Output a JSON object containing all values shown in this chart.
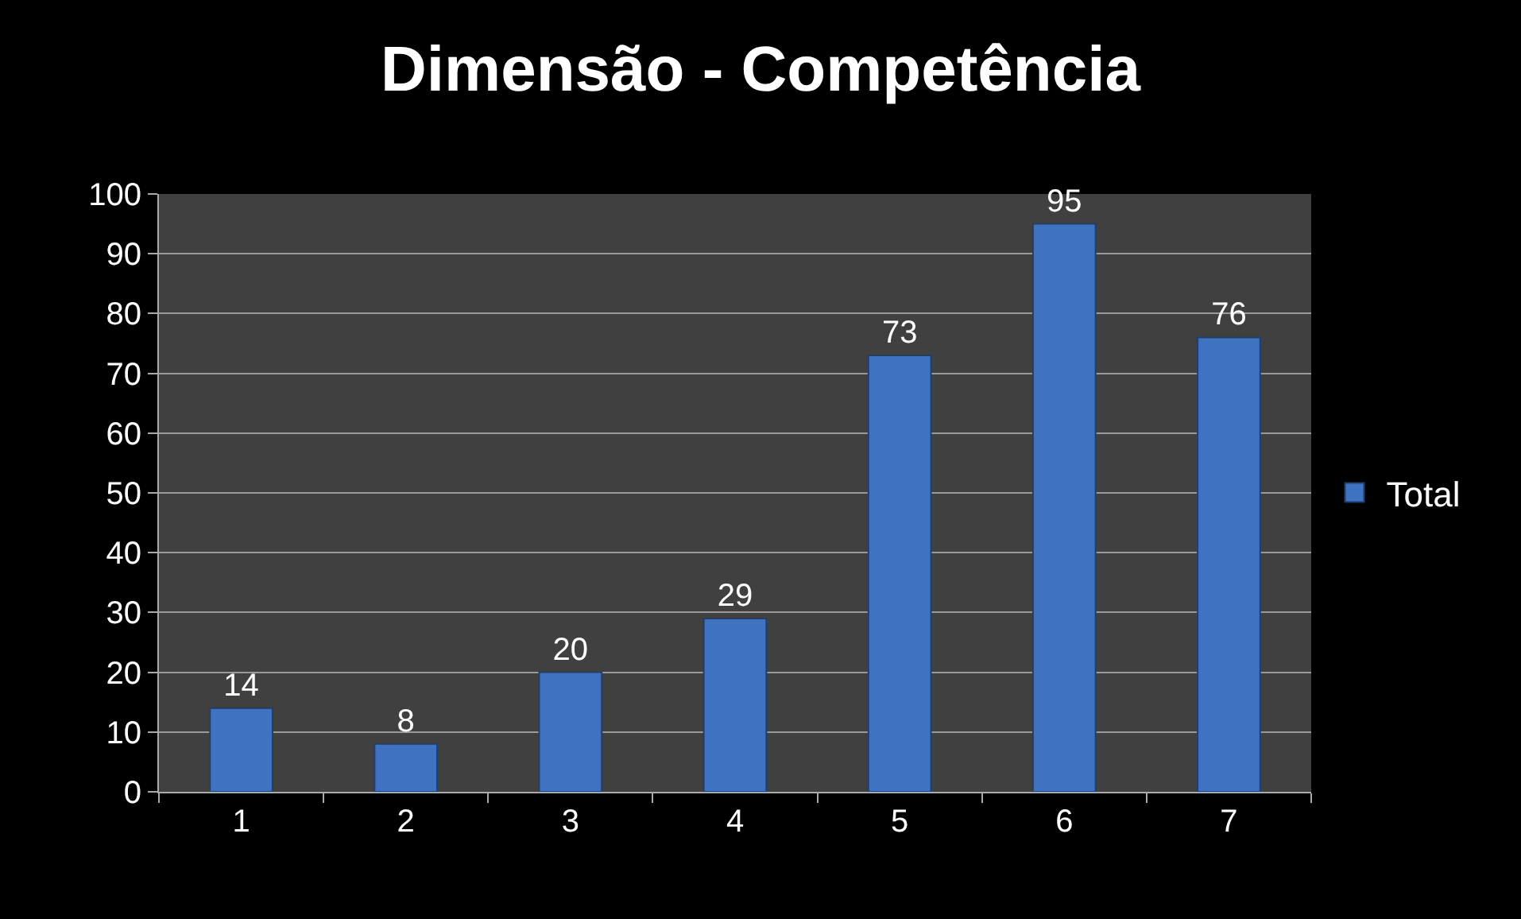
{
  "chart_data": {
    "type": "bar",
    "title": "Dimensão - Competência",
    "categories": [
      "1",
      "2",
      "3",
      "4",
      "5",
      "6",
      "7"
    ],
    "series": [
      {
        "name": "Total",
        "color": "#3f72c0",
        "values": [
          14,
          8,
          20,
          29,
          73,
          95,
          76
        ]
      }
    ],
    "ylim": [
      0,
      100
    ],
    "yticks": [
      0,
      10,
      20,
      30,
      40,
      50,
      60,
      70,
      80,
      90,
      100
    ],
    "grid": "y",
    "legend": "right",
    "data_labels": true
  }
}
